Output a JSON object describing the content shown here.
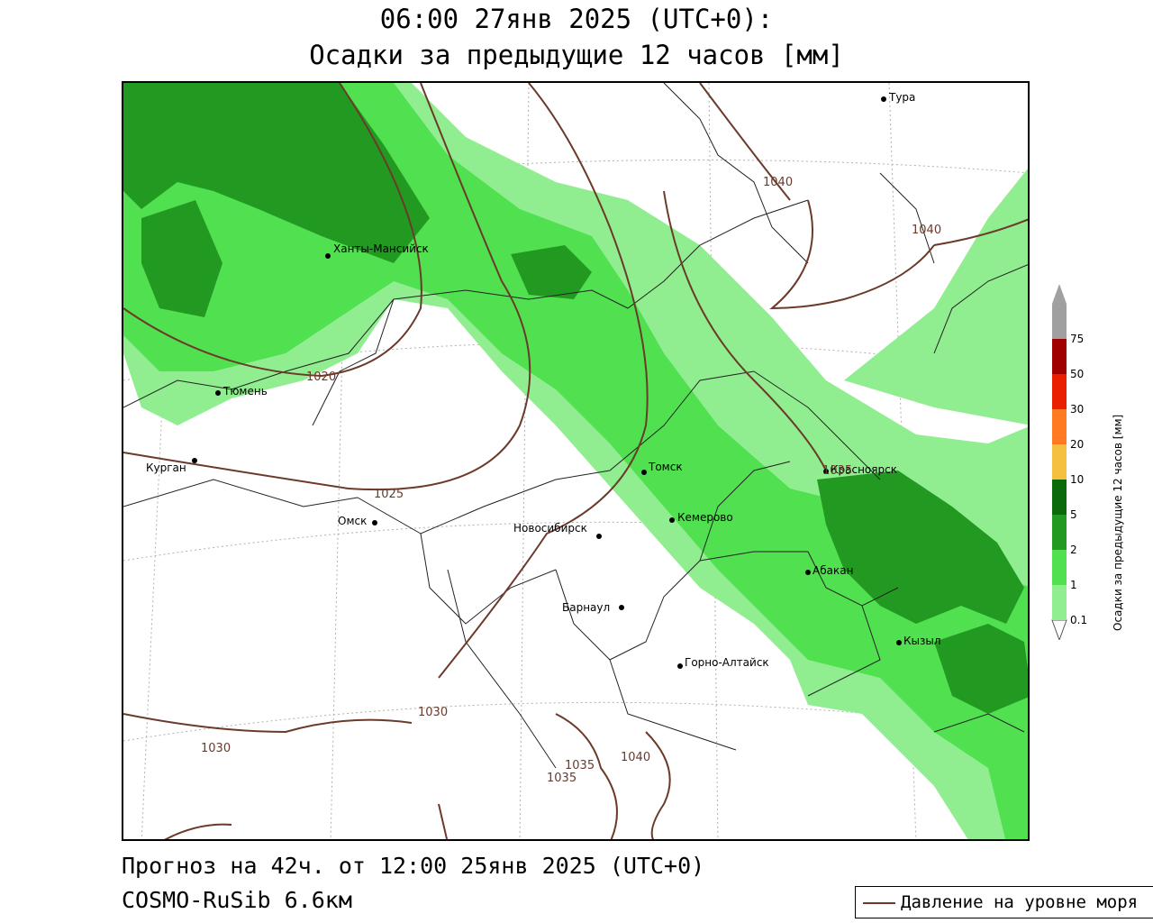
{
  "header": {
    "line1": "06:00 27янв 2025 (UTC+0):",
    "line2": "Осадки за предыдущие 12 часов [мм]"
  },
  "footer": {
    "forecast": "Прогноз на 42ч. от 12:00 25янв 2025 (UTC+0)",
    "model": "COSMO-RuSib 6.6км"
  },
  "legend": {
    "pressure_label": "Давление на уровне моря",
    "pressure_color": "#6b3a2a"
  },
  "colorbar": {
    "title": "Осадки за предыдущие 12 часов [мм]",
    "levels": [
      "0.1",
      "1",
      "2",
      "5",
      "10",
      "20",
      "30",
      "50",
      "75"
    ],
    "colors": [
      "#ffffff",
      "#90ee90",
      "#50e050",
      "#229a22",
      "#0b6b0b",
      "#f5c040",
      "#ff7a20",
      "#e82000",
      "#a00000",
      "#a0a0a0"
    ]
  },
  "cities": {
    "tura": "Тура",
    "khanty": "Ханты-Мансийск",
    "tyumen": "Тюмень",
    "kurgan": "Курган",
    "omsk": "Омск",
    "novosibirsk": "Новосибирск",
    "tomsk": "Томск",
    "kemerovo": "Кемерово",
    "krasnoyarsk": "Красноярск",
    "abakan": "Абакан",
    "barnaul": "Барнаул",
    "gorno": "Горно-Алтайск",
    "kyzyl": "Кызыл"
  },
  "isobars": {
    "i1020": "1020",
    "i1025": "1025",
    "i1030a": "1030",
    "i1030b": "1030",
    "i1035a": "1035",
    "i1035b": "1035",
    "i1035c": "1035",
    "i1040a": "1040",
    "i1040b": "1040",
    "i1040c": "1040"
  }
}
